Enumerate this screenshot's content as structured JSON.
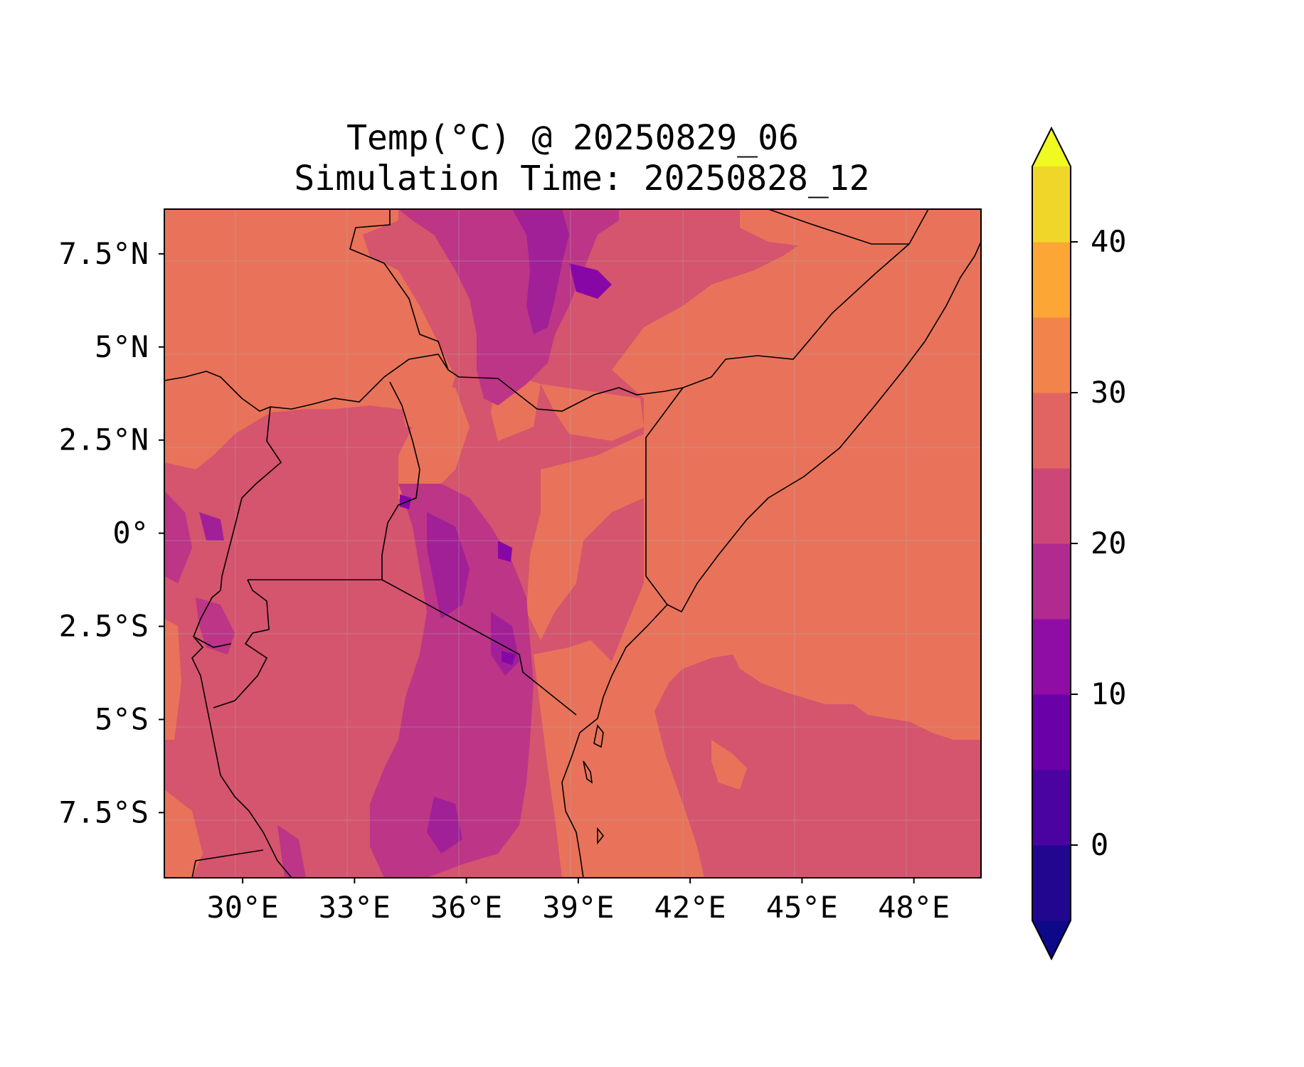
{
  "title": {
    "line1": "Temp(°C) @ 20250829_06",
    "line2": "Simulation Time: 20250828_12"
  },
  "map": {
    "extent": {
      "lon_min": 27.9,
      "lon_max": 49.8,
      "lat_min": -9.25,
      "lat_max": 8.7
    },
    "x_ticks": [
      {
        "lon": 30,
        "label": "30°E"
      },
      {
        "lon": 33,
        "label": "33°E"
      },
      {
        "lon": 36,
        "label": "36°E"
      },
      {
        "lon": 39,
        "label": "39°E"
      },
      {
        "lon": 42,
        "label": "42°E"
      },
      {
        "lon": 45,
        "label": "45°E"
      },
      {
        "lon": 48,
        "label": "48°E"
      }
    ],
    "y_ticks": [
      {
        "lat": 7.5,
        "label": "7.5°N"
      },
      {
        "lat": 5,
        "label": "5°N"
      },
      {
        "lat": 2.5,
        "label": "2.5°N"
      },
      {
        "lat": 0,
        "label": "0°"
      },
      {
        "lat": -2.5,
        "label": "2.5°S"
      },
      {
        "lat": -5,
        "label": "5°S"
      },
      {
        "lat": -7.5,
        "label": "7.5°S"
      }
    ],
    "dominant_colors": {
      "band_25_30": "#e8735a",
      "band_20_25": "#d5546e",
      "band_15_20": "#bc3587",
      "band_10_15": "#a12098",
      "band_5_10": "#8606a6"
    }
  },
  "colorbar": {
    "levels": [
      -5,
      0,
      5,
      10,
      15,
      20,
      25,
      30,
      35,
      40,
      45
    ],
    "colors": [
      "#220690",
      "#4a02a0",
      "#6a00a8",
      "#8f0da4",
      "#b12a90",
      "#cc4778",
      "#e16462",
      "#f2844b",
      "#fca636",
      "#f0d628"
    ],
    "extend_min_color": "#0d0887",
    "extend_max_color": "#f0f921",
    "ticks": [
      {
        "value": 0,
        "label": "0"
      },
      {
        "value": 10,
        "label": "10"
      },
      {
        "value": 20,
        "label": "20"
      },
      {
        "value": 30,
        "label": "30"
      },
      {
        "value": 40,
        "label": "40"
      }
    ]
  }
}
